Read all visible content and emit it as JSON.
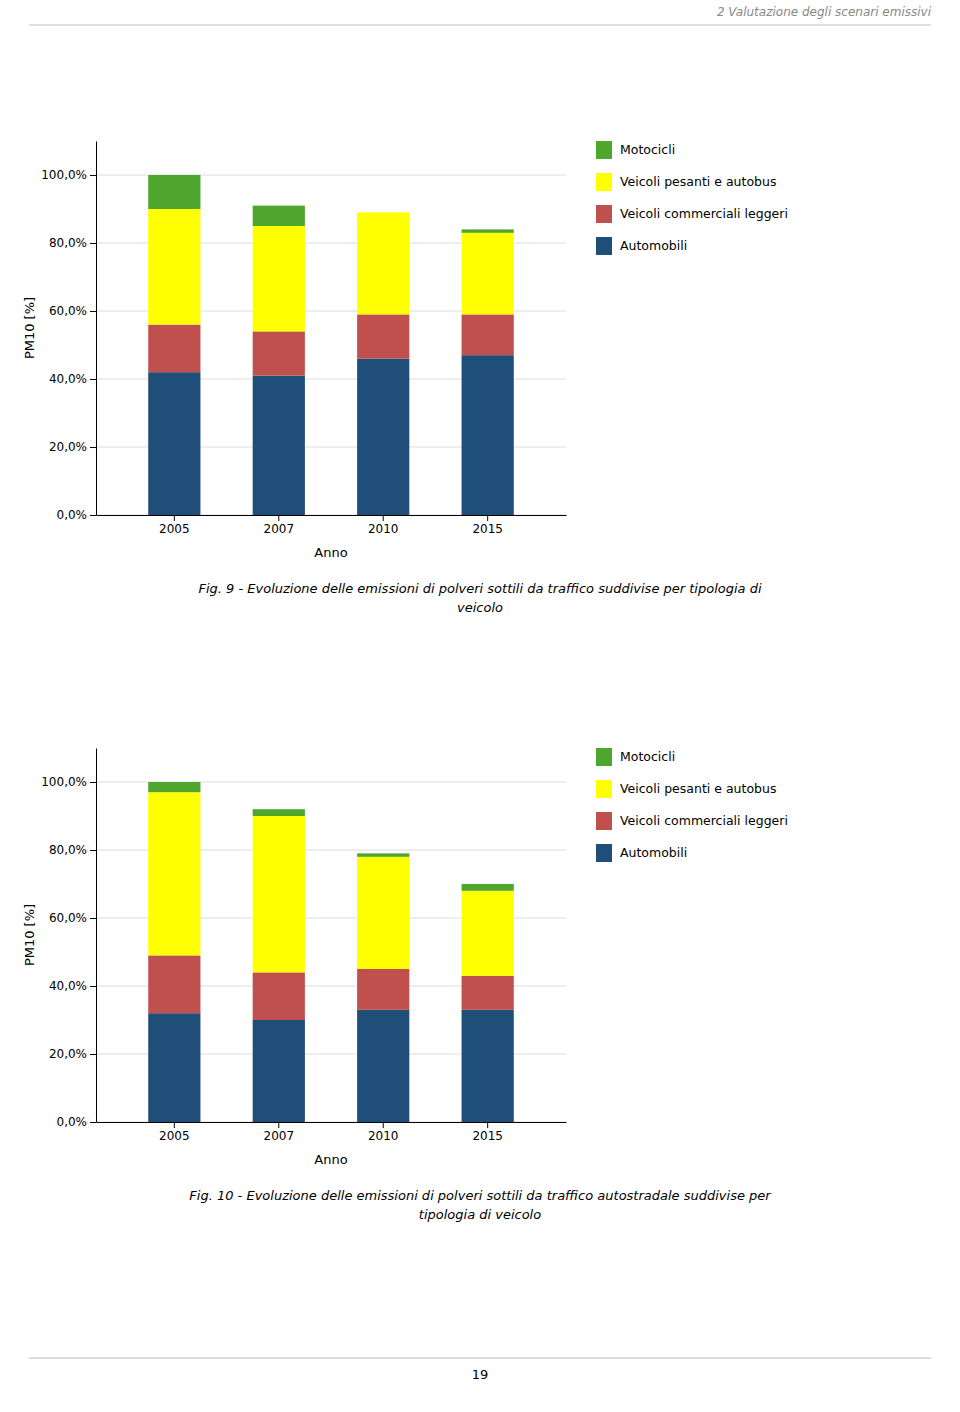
{
  "header": "2 Valutazione degli scenari emissivi",
  "page_number": "19",
  "chart_data": [
    {
      "type": "bar",
      "stacked": true,
      "grid": true,
      "legend": "right",
      "categories": [
        "2005",
        "2007",
        "2010",
        "2015"
      ],
      "series": [
        {
          "name": "Automobili",
          "color": "#1f4e79",
          "values": [
            42.0,
            41.0,
            46.0,
            47.0
          ]
        },
        {
          "name": "Veicoli commerciali leggeri",
          "color": "#c0504d",
          "values": [
            14.0,
            13.0,
            13.0,
            12.0
          ]
        },
        {
          "name": "Veicoli pesanti e autobus",
          "color": "#ffff00",
          "values": [
            34.0,
            31.0,
            30.0,
            24.0
          ]
        },
        {
          "name": "Motocicli",
          "color": "#4ea72c",
          "values": [
            10.0,
            6.0,
            0.0,
            1.0
          ]
        }
      ],
      "xlabel": "Anno",
      "ylabel": "PM10 [%]",
      "ylim": [
        0,
        110
      ],
      "yticks": [
        {
          "value": 0.0,
          "label": "0,0%"
        },
        {
          "value": 20.0,
          "label": "20,0%"
        },
        {
          "value": 40.0,
          "label": "40,0%"
        },
        {
          "value": 60.0,
          "label": "60,0%"
        },
        {
          "value": 80.0,
          "label": "80,0%"
        },
        {
          "value": 100.0,
          "label": "100,0%"
        }
      ],
      "caption": [
        "Fig. 9 - Evoluzione delle emissioni di polveri sottili da traffico suddivise per tipologia di",
        "veicolo"
      ]
    },
    {
      "type": "bar",
      "stacked": true,
      "grid": true,
      "legend": "right",
      "categories": [
        "2005",
        "2007",
        "2010",
        "2015"
      ],
      "series": [
        {
          "name": "Automobili",
          "color": "#1f4e79",
          "values": [
            32.0,
            30.0,
            33.0,
            33.0
          ]
        },
        {
          "name": "Veicoli commerciali leggeri",
          "color": "#c0504d",
          "values": [
            17.0,
            14.0,
            12.0,
            10.0
          ]
        },
        {
          "name": "Veicoli pesanti e autobus",
          "color": "#ffff00",
          "values": [
            48.0,
            46.0,
            33.0,
            25.0
          ]
        },
        {
          "name": "Motocicli",
          "color": "#4ea72c",
          "values": [
            3.0,
            2.0,
            1.0,
            2.0
          ]
        }
      ],
      "xlabel": "Anno",
      "ylabel": "PM10 [%]",
      "ylim": [
        0,
        110
      ],
      "yticks": [
        {
          "value": 0.0,
          "label": "0,0%"
        },
        {
          "value": 20.0,
          "label": "20,0%"
        },
        {
          "value": 40.0,
          "label": "40,0%"
        },
        {
          "value": 60.0,
          "label": "60,0%"
        },
        {
          "value": 80.0,
          "label": "80,0%"
        },
        {
          "value": 100.0,
          "label": "100,0%"
        }
      ],
      "caption": [
        "Fig. 10 - Evoluzione delle emissioni di polveri sottili da traffico autostradale suddivise per",
        "tipologia di veicolo"
      ]
    }
  ]
}
